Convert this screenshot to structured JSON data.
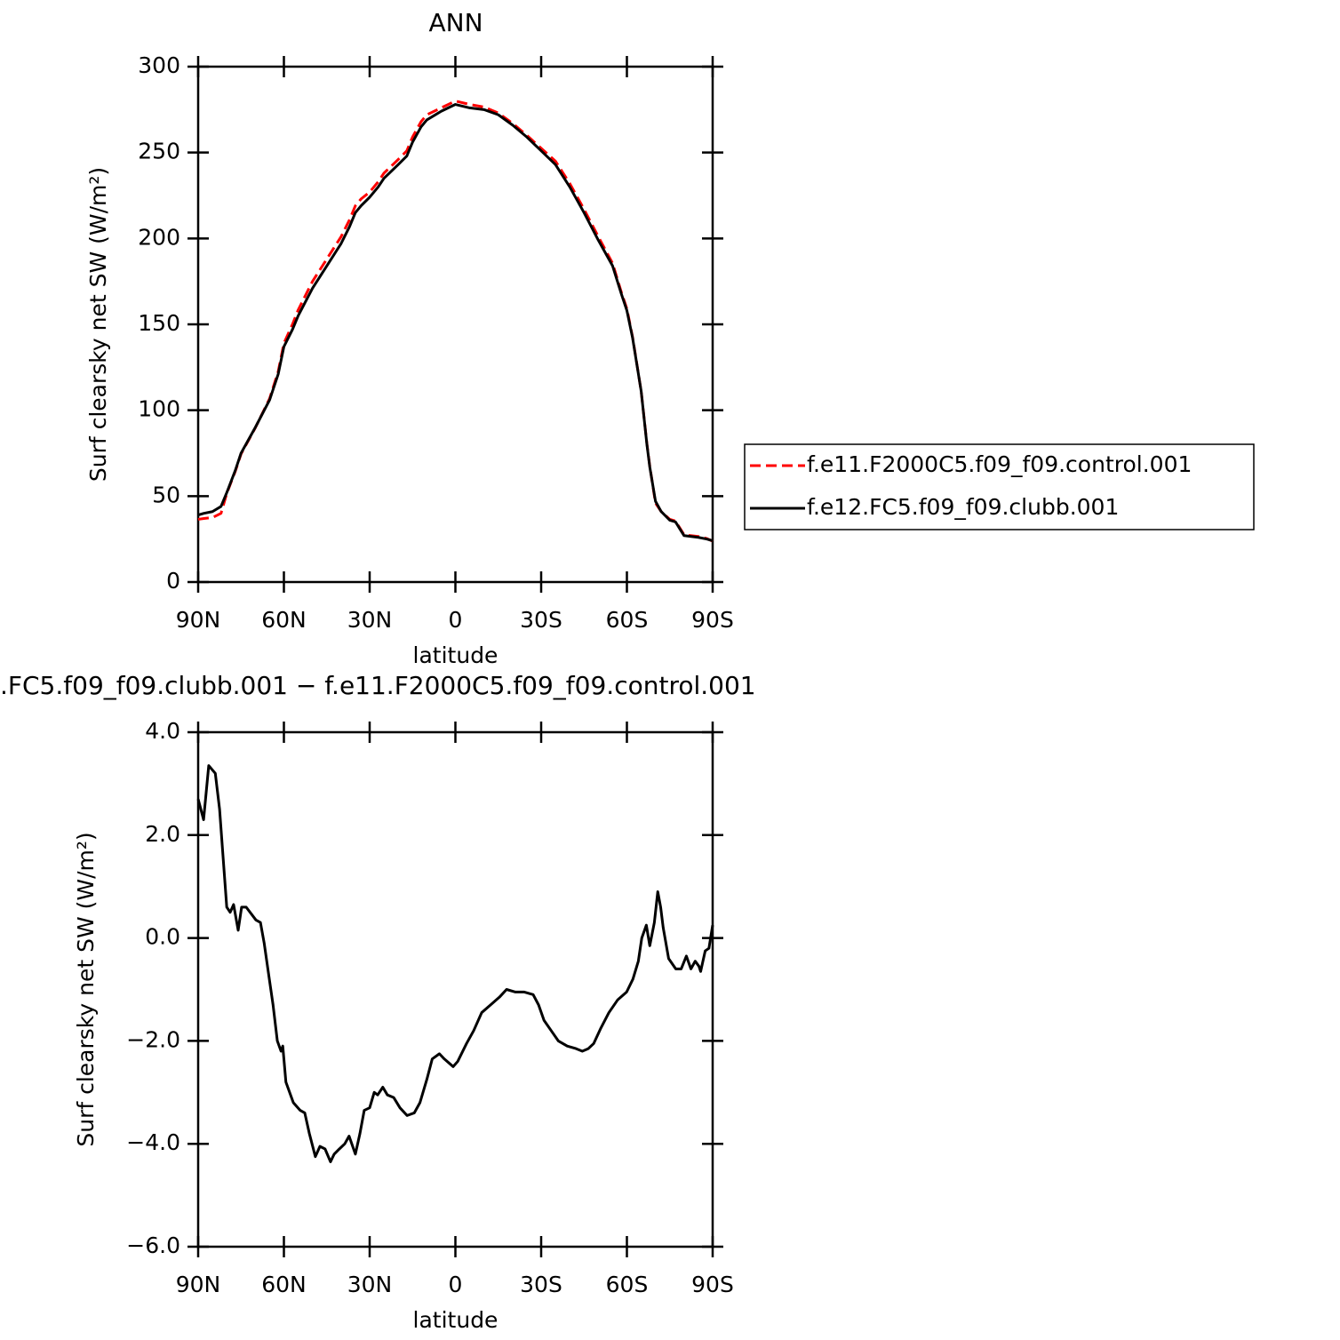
{
  "chart_data": [
    {
      "type": "line",
      "title": "ANN",
      "xlabel": "latitude",
      "ylabel": "Surf clearsky net SW (W/m²)",
      "x": [
        90,
        88,
        85,
        82,
        80,
        77,
        75,
        70,
        65,
        62,
        60,
        57,
        55,
        50,
        45,
        40,
        37,
        35,
        33,
        30,
        27,
        25,
        20,
        17,
        15,
        12,
        10,
        5,
        0,
        -5,
        -10,
        -15,
        -20,
        -25,
        -30,
        -35,
        -40,
        -45,
        -50,
        -55,
        -58,
        -60,
        -62,
        -65,
        -67,
        -68,
        -70,
        -72,
        -75,
        -77,
        -80,
        -85,
        -88,
        -90
      ],
      "series": [
        {
          "name": "f.e11.F2000C5.f09_f09.control.001",
          "color": "#ff0000",
          "line_style": "dashed",
          "values": [
            36.5,
            37,
            37.5,
            40,
            51.5,
            64.5,
            74.5,
            89.8,
            106.8,
            122.5,
            139,
            150,
            158.4,
            175,
            188,
            201,
            211,
            219,
            223,
            227,
            233,
            238,
            246,
            251,
            259,
            268,
            272,
            276,
            280,
            278,
            276.5,
            273,
            267,
            260,
            252.5,
            245,
            232,
            217,
            201,
            185.5,
            169,
            159,
            142.5,
            111,
            80.5,
            67.5,
            46,
            41,
            36.5,
            35.5,
            27.5,
            26.5,
            25.3,
            23.8
          ]
        },
        {
          "name": "f.e12.FC5.f09_f09.clubb.001",
          "color": "#000000",
          "line_style": "solid",
          "values": [
            39,
            40,
            41,
            44,
            52,
            65,
            75,
            90,
            106,
            121,
            137,
            147,
            155,
            171,
            184,
            197,
            207,
            215,
            219,
            224,
            230,
            235,
            243,
            248,
            256,
            265,
            269,
            274,
            278,
            276,
            275,
            272,
            266,
            259,
            251,
            243,
            230,
            215,
            199,
            184,
            168,
            158,
            142,
            111,
            80,
            67,
            47,
            41,
            36,
            35,
            27,
            26,
            25,
            24
          ]
        }
      ],
      "xlim": [
        90,
        -90
      ],
      "xticks": [
        {
          "value": 90,
          "label": "90N"
        },
        {
          "value": 60,
          "label": "60N"
        },
        {
          "value": 30,
          "label": "30N"
        },
        0,
        {
          "value": -30,
          "label": "30S"
        },
        {
          "value": -60,
          "label": "60S"
        },
        {
          "value": -90,
          "label": "90S"
        }
      ],
      "ylim": [
        0,
        300
      ],
      "yticks": [
        0,
        50,
        100,
        150,
        200,
        250,
        300
      ],
      "legend": "right"
    },
    {
      "type": "line",
      "title": ".FC5.f09_f09.clubb.001 − f.e11.F2000C5.f09_f09.control.001",
      "xlabel": "latitude",
      "ylabel": "Surf clearsky net SW (W/m²)",
      "x": [
        90,
        88.1,
        86.3,
        84,
        82.5,
        80,
        78.8,
        77.6,
        76,
        74.8,
        73.2,
        69.8,
        68.2,
        66.9,
        65.1,
        63.8,
        62.3,
        61,
        60.4,
        59.3,
        56.7,
        54.3,
        52.7,
        51.1,
        49,
        47.4,
        45.6,
        43.7,
        42.4,
        40.6,
        38.7,
        37.2,
        35,
        33.4,
        31.9,
        30,
        28.4,
        27.2,
        25.4,
        23.8,
        21.6,
        19.4,
        16.9,
        14.4,
        12.4,
        10,
        8.1,
        5.6,
        3.9,
        0.8,
        -0.8,
        -3.9,
        -6.4,
        -9.2,
        -12.3,
        -15.4,
        -17.9,
        -21,
        -24.1,
        -27.2,
        -29.1,
        -31,
        -33.5,
        -36,
        -39.1,
        -42.2,
        -44.4,
        -46.5,
        -48.4,
        -50.9,
        -53.7,
        -56.8,
        -59.9,
        -62.1,
        -64,
        -65.2,
        -66.8,
        -68,
        -69.6,
        -70.8,
        -71.8,
        -72.7,
        -74.6,
        -77.1,
        -79,
        -80.8,
        -82.4,
        -83.9,
        -85.2,
        -85.8,
        -87.4,
        -88.7,
        -90
      ],
      "series": [
        {
          "name": null,
          "color": "#000000",
          "line_style": "solid",
          "values": [
            2.7,
            2.3,
            3.35,
            3.2,
            2.5,
            0.6,
            0.5,
            0.65,
            0.15,
            0.6,
            0.6,
            0.35,
            0.3,
            -0.1,
            -0.8,
            -1.3,
            -2.0,
            -2.2,
            -2.1,
            -2.8,
            -3.2,
            -3.35,
            -3.4,
            -3.8,
            -4.25,
            -4.05,
            -4.1,
            -4.35,
            -4.2,
            -4.1,
            -4.0,
            -3.85,
            -4.2,
            -3.8,
            -3.35,
            -3.3,
            -3.0,
            -3.05,
            -2.9,
            -3.05,
            -3.1,
            -3.3,
            -3.45,
            -3.4,
            -3.2,
            -2.75,
            -2.35,
            -2.25,
            -2.35,
            -2.5,
            -2.4,
            -2.05,
            -1.8,
            -1.45,
            -1.3,
            -1.15,
            -1.0,
            -1.05,
            -1.05,
            -1.1,
            -1.3,
            -1.6,
            -1.8,
            -2.0,
            -2.1,
            -2.15,
            -2.2,
            -2.15,
            -2.05,
            -1.75,
            -1.45,
            -1.2,
            -1.05,
            -0.8,
            -0.45,
            0.0,
            0.25,
            -0.15,
            0.3,
            0.9,
            0.6,
            0.2,
            -0.4,
            -0.6,
            -0.6,
            -0.35,
            -0.6,
            -0.45,
            -0.55,
            -0.65,
            -0.25,
            -0.2,
            0.25
          ]
        }
      ],
      "xlim": [
        90,
        -90
      ],
      "xticks": [
        {
          "value": 90,
          "label": "90N"
        },
        {
          "value": 60,
          "label": "60N"
        },
        {
          "value": 30,
          "label": "30N"
        },
        0,
        {
          "value": -30,
          "label": "30S"
        },
        {
          "value": -60,
          "label": "60S"
        },
        {
          "value": -90,
          "label": "90S"
        }
      ],
      "ylim": [
        -6,
        4
      ],
      "yticks": [
        {
          "value": -6,
          "label": "−6.0"
        },
        {
          "value": -4,
          "label": "−4.0"
        },
        {
          "value": -2,
          "label": "−2.0"
        },
        {
          "value": 0,
          "label": "0.0"
        },
        {
          "value": 2,
          "label": "2.0"
        },
        {
          "value": 4,
          "label": "4.0"
        }
      ]
    }
  ]
}
